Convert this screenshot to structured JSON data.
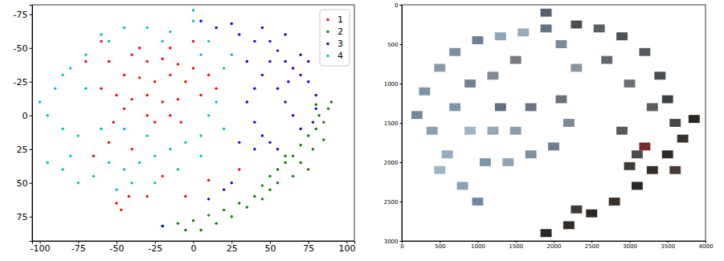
{
  "chart_data": [
    {
      "type": "scatter",
      "marker": "circle",
      "legend": "upper right",
      "grid": false,
      "xlim": [
        -105,
        105
      ],
      "ylim": [
        93,
        -82
      ],
      "xticks": [
        -100,
        -75,
        -50,
        -25,
        0,
        25,
        50,
        75,
        100
      ],
      "yticks": [
        -75,
        -50,
        -25,
        0,
        25,
        50,
        75
      ],
      "series": [
        {
          "name": "1",
          "color": "#ff0000",
          "x": [
            -40,
            -30,
            -20,
            -10,
            -45,
            -35,
            -25,
            -15,
            -5,
            0,
            -50,
            -40,
            -30,
            -20,
            -10,
            5,
            -55,
            -45,
            -30,
            -15,
            -25,
            -35,
            -60,
            -52,
            10,
            -8,
            -50,
            -47,
            -42,
            -60,
            -70,
            -20,
            -5,
            10,
            -30,
            30,
            -55,
            -40,
            15,
            -15,
            0,
            -65
          ],
          "values": [
            -45,
            -40,
            -42,
            -38,
            -30,
            -28,
            -25,
            -30,
            -25,
            -35,
            -15,
            -12,
            -15,
            -10,
            -12,
            -15,
            -40,
            -5,
            0,
            0,
            5,
            -50,
            -20,
            5,
            -30,
            5,
            65,
            70,
            60,
            -55,
            -40,
            45,
            60,
            48,
            60,
            40,
            20,
            25,
            -20,
            -50,
            -55,
            30
          ]
        },
        {
          "name": "2",
          "color": "#008000",
          "x": [
            -20,
            -10,
            0,
            10,
            20,
            30,
            40,
            45,
            50,
            55,
            60,
            65,
            70,
            75,
            80,
            85,
            88,
            90,
            80,
            82,
            25,
            35,
            15,
            5,
            55,
            65,
            70,
            78,
            60,
            45,
            -5,
            85,
            75,
            50
          ],
          "values": [
            82,
            80,
            78,
            74,
            70,
            65,
            60,
            52,
            45,
            40,
            35,
            30,
            22,
            15,
            10,
            5,
            -5,
            -10,
            -8,
            0,
            75,
            68,
            80,
            85,
            50,
            45,
            35,
            25,
            30,
            62,
            85,
            18,
            40,
            55
          ]
        },
        {
          "name": "3",
          "color": "#0000ff",
          "x": [
            5,
            15,
            25,
            30,
            40,
            50,
            55,
            60,
            65,
            70,
            75,
            80,
            80,
            78,
            70,
            65,
            60,
            55,
            45,
            40,
            35,
            40,
            45,
            50,
            55,
            40,
            30,
            25,
            20,
            10,
            -20,
            70,
            60,
            35,
            50,
            75,
            45,
            62
          ],
          "values": [
            -70,
            -65,
            -68,
            -60,
            -55,
            -55,
            -48,
            -40,
            -35,
            -30,
            -25,
            -15,
            -5,
            5,
            10,
            0,
            -10,
            -20,
            -30,
            -20,
            -10,
            5,
            15,
            20,
            25,
            25,
            20,
            50,
            55,
            62,
            82,
            -45,
            -60,
            -40,
            -40,
            -40,
            -65,
            -25
          ]
        },
        {
          "name": "4",
          "color": "#00bfbf",
          "x": [
            -95,
            -100,
            -90,
            -85,
            -80,
            -70,
            -60,
            -45,
            -30,
            -15,
            0,
            0,
            10,
            20,
            25,
            15,
            10,
            -75,
            -80,
            -85,
            -75,
            -65,
            -55,
            -45,
            -35,
            -25,
            -15,
            -5,
            5,
            -50,
            -40,
            -25,
            -10,
            5,
            -95,
            -70,
            -85,
            -60,
            -45,
            -30,
            20,
            -55,
            -20,
            5
          ],
          "values": [
            0,
            -10,
            -20,
            10,
            -35,
            -45,
            -60,
            -65,
            -65,
            -62,
            -70,
            -78,
            -55,
            -35,
            -45,
            -10,
            0,
            15,
            30,
            40,
            50,
            45,
            35,
            40,
            35,
            30,
            25,
            20,
            15,
            55,
            50,
            50,
            40,
            30,
            35,
            -20,
            -30,
            10,
            10,
            15,
            10,
            -55,
            -55,
            -45
          ]
        }
      ]
    },
    {
      "type": "scatter",
      "marker": "square",
      "grid": false,
      "xlim": [
        0,
        4000
      ],
      "ylim": [
        3000,
        0
      ],
      "xticks": [
        0,
        500,
        1000,
        1500,
        2000,
        2500,
        3000,
        3500,
        4000
      ],
      "yticks": [
        0,
        500,
        1000,
        1500,
        2000,
        2500,
        3000
      ],
      "x": [
        200,
        300,
        500,
        700,
        1000,
        1300,
        1600,
        1900,
        1900,
        2100,
        2300,
        1500,
        1200,
        900,
        700,
        400,
        600,
        500,
        800,
        1000,
        1100,
        1400,
        1700,
        2000,
        2200,
        1500,
        1200,
        900,
        1300,
        1700,
        2100,
        2300,
        2600,
        2900,
        3200,
        3400,
        3500,
        3600,
        3300,
        3000,
        2700,
        2900,
        3100,
        1900,
        2200,
        2500,
        2800,
        3100,
        3300,
        3500,
        3700,
        3850,
        2300,
        3000,
        3600,
        3200
      ],
      "values": [
        1400,
        1100,
        800,
        600,
        450,
        400,
        350,
        300,
        100,
        500,
        800,
        700,
        900,
        1000,
        1300,
        1600,
        1900,
        2100,
        2300,
        2500,
        2000,
        2000,
        1900,
        1800,
        1500,
        1600,
        1600,
        1600,
        1300,
        1300,
        1200,
        250,
        300,
        400,
        600,
        900,
        1200,
        1500,
        1300,
        1000,
        700,
        1600,
        1900,
        2900,
        2800,
        2650,
        2500,
        2300,
        2100,
        1900,
        1700,
        1450,
        2600,
        2050,
        2100,
        1800
      ],
      "colors": [
        "#6f8aa0",
        "#7b94a8",
        "#8a9bac",
        "#7d8fa0",
        "#6c8196",
        "#8ea4b6",
        "#9aabb9",
        "#5f7489",
        "#54606c",
        "#7a8a98",
        "#8796a3",
        "#7a7a80",
        "#808a94",
        "#737f8c",
        "#7e95aa",
        "#88a1b6",
        "#94aabe",
        "#a0b4c6",
        "#8aa2b8",
        "#6f8aa5",
        "#8097ab",
        "#90a4b6",
        "#7c8f9f",
        "#6d7d8c",
        "#7a8896",
        "#8b9dad",
        "#93a7b8",
        "#a2b5c5",
        "#5e6f80",
        "#6a7684",
        "#6b727a",
        "#4a4f55",
        "#5a5f66",
        "#4d5259",
        "#565b61",
        "#4a4e52",
        "#3e4246",
        "#45474a",
        "#5c5e62",
        "#6b6f75",
        "#63686f",
        "#55585c",
        "#4a4b4d",
        "#2b2622",
        "#332b26",
        "#2e2824",
        "#3a302a",
        "#2a2522",
        "#352d28",
        "#2f2a26",
        "#3b332d",
        "#2c2723",
        "#3e3a38",
        "#433b35",
        "#4a3c34",
        "#7a2a2a"
      ]
    }
  ]
}
